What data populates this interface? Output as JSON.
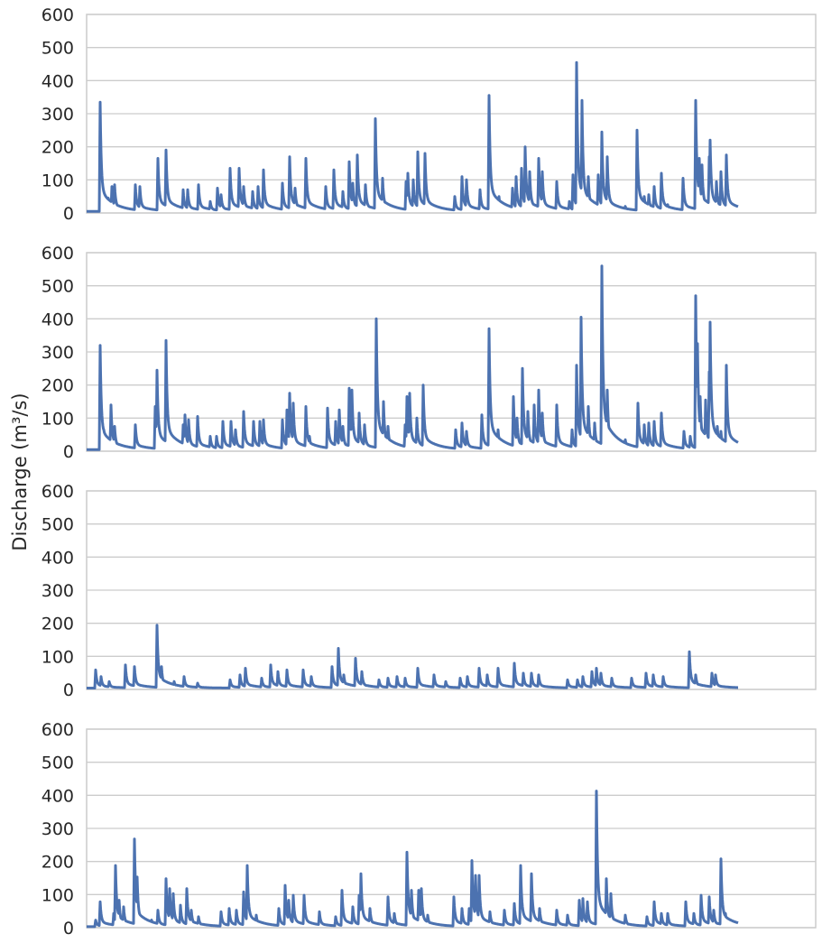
{
  "chart_data": [
    {
      "type": "line",
      "ylabel": "Discharge (m³/s)",
      "ylim": [
        0,
        600
      ],
      "yticks": [
        "0",
        "100",
        "200",
        "300",
        "400",
        "500",
        "600"
      ],
      "xlim": [
        0,
        808
      ],
      "x_series_end": 722,
      "xlabel": "",
      "grid": true,
      "color": "#4c72b0",
      "base_flow": 5,
      "peaks": [
        [
          15,
          330
        ],
        [
          24,
          40
        ],
        [
          28,
          75
        ],
        [
          31,
          80
        ],
        [
          54,
          80
        ],
        [
          59,
          75
        ],
        [
          79,
          160
        ],
        [
          88,
          185
        ],
        [
          107,
          65
        ],
        [
          112,
          65
        ],
        [
          124,
          80
        ],
        [
          137,
          30
        ],
        [
          145,
          70
        ],
        [
          149,
          50
        ],
        [
          159,
          130
        ],
        [
          169,
          130
        ],
        [
          174,
          75
        ],
        [
          184,
          60
        ],
        [
          190,
          75
        ],
        [
          196,
          125
        ],
        [
          217,
          85
        ],
        [
          225,
          165
        ],
        [
          231,
          70
        ],
        [
          243,
          160
        ],
        [
          265,
          75
        ],
        [
          274,
          125
        ],
        [
          284,
          60
        ],
        [
          291,
          150
        ],
        [
          295,
          85
        ],
        [
          300,
          170
        ],
        [
          309,
          80
        ],
        [
          320,
          280
        ],
        [
          328,
          100
        ],
        [
          354,
          90
        ],
        [
          356,
          115
        ],
        [
          362,
          95
        ],
        [
          367,
          180
        ],
        [
          375,
          175
        ],
        [
          408,
          45
        ],
        [
          416,
          105
        ],
        [
          421,
          95
        ],
        [
          436,
          65
        ],
        [
          446,
          350
        ],
        [
          457,
          45
        ],
        [
          472,
          70
        ],
        [
          476,
          105
        ],
        [
          482,
          130
        ],
        [
          486,
          195
        ],
        [
          491,
          120
        ],
        [
          501,
          160
        ],
        [
          505,
          120
        ],
        [
          521,
          90
        ],
        [
          535,
          30
        ],
        [
          539,
          110
        ],
        [
          543,
          450
        ],
        [
          549,
          335
        ],
        [
          556,
          105
        ],
        [
          567,
          110
        ],
        [
          571,
          240
        ],
        [
          577,
          165
        ],
        [
          597,
          15
        ],
        [
          610,
          245
        ],
        [
          618,
          45
        ],
        [
          623,
          50
        ],
        [
          629,
          75
        ],
        [
          637,
          115
        ],
        [
          644,
          20
        ],
        [
          661,
          100
        ],
        [
          675,
          335
        ],
        [
          679,
          160
        ],
        [
          682,
          140
        ],
        [
          690,
          165
        ],
        [
          691,
          215
        ],
        [
          698,
          90
        ],
        [
          703,
          120
        ],
        [
          709,
          170
        ]
      ]
    },
    {
      "type": "line",
      "ylim": [
        0,
        600
      ],
      "yticks": [
        "0",
        "100",
        "200",
        "300",
        "400",
        "500",
        "600"
      ],
      "xlim": [
        0,
        808
      ],
      "x_series_end": 722,
      "grid": true,
      "color": "#4c72b0",
      "base_flow": 5,
      "peaks": [
        [
          15,
          315
        ],
        [
          19,
          60
        ],
        [
          27,
          135
        ],
        [
          31,
          70
        ],
        [
          54,
          75
        ],
        [
          76,
          130
        ],
        [
          78,
          240
        ],
        [
          88,
          330
        ],
        [
          92,
          60
        ],
        [
          107,
          75
        ],
        [
          109,
          105
        ],
        [
          113,
          90
        ],
        [
          123,
          100
        ],
        [
          137,
          40
        ],
        [
          144,
          40
        ],
        [
          151,
          85
        ],
        [
          160,
          85
        ],
        [
          165,
          60
        ],
        [
          174,
          115
        ],
        [
          185,
          85
        ],
        [
          192,
          85
        ],
        [
          196,
          90
        ],
        [
          217,
          90
        ],
        [
          222,
          120
        ],
        [
          225,
          170
        ],
        [
          229,
          140
        ],
        [
          243,
          130
        ],
        [
          247,
          40
        ],
        [
          267,
          125
        ],
        [
          276,
          85
        ],
        [
          280,
          120
        ],
        [
          284,
          70
        ],
        [
          291,
          185
        ],
        [
          294,
          180
        ],
        [
          302,
          110
        ],
        [
          308,
          75
        ],
        [
          321,
          395
        ],
        [
          329,
          145
        ],
        [
          334,
          70
        ],
        [
          353,
          75
        ],
        [
          355,
          160
        ],
        [
          358,
          170
        ],
        [
          366,
          95
        ],
        [
          373,
          195
        ],
        [
          409,
          60
        ],
        [
          416,
          80
        ],
        [
          421,
          55
        ],
        [
          438,
          105
        ],
        [
          446,
          365
        ],
        [
          456,
          60
        ],
        [
          473,
          160
        ],
        [
          477,
          95
        ],
        [
          483,
          245
        ],
        [
          489,
          115
        ],
        [
          496,
          135
        ],
        [
          501,
          180
        ],
        [
          505,
          110
        ],
        [
          521,
          135
        ],
        [
          538,
          60
        ],
        [
          543,
          255
        ],
        [
          548,
          400
        ],
        [
          556,
          130
        ],
        [
          563,
          80
        ],
        [
          571,
          555
        ],
        [
          577,
          180
        ],
        [
          597,
          30
        ],
        [
          611,
          140
        ],
        [
          618,
          75
        ],
        [
          623,
          80
        ],
        [
          629,
          85
        ],
        [
          637,
          110
        ],
        [
          662,
          55
        ],
        [
          669,
          40
        ],
        [
          675,
          465
        ],
        [
          677,
          320
        ],
        [
          680,
          160
        ],
        [
          686,
          150
        ],
        [
          690,
          235
        ],
        [
          691,
          385
        ],
        [
          699,
          70
        ],
        [
          703,
          55
        ],
        [
          709,
          255
        ]
      ]
    },
    {
      "type": "line",
      "ylim": [
        0,
        600
      ],
      "yticks": [
        "0",
        "100",
        "200",
        "300",
        "400",
        "500",
        "600"
      ],
      "xlim": [
        0,
        808
      ],
      "x_series_end": 722,
      "grid": true,
      "color": "#4c72b0",
      "base_flow": 4,
      "peaks": [
        [
          10,
          55
        ],
        [
          16,
          35
        ],
        [
          25,
          20
        ],
        [
          43,
          70
        ],
        [
          53,
          65
        ],
        [
          78,
          190
        ],
        [
          83,
          65
        ],
        [
          97,
          20
        ],
        [
          108,
          35
        ],
        [
          123,
          15
        ],
        [
          159,
          25
        ],
        [
          170,
          40
        ],
        [
          176,
          60
        ],
        [
          194,
          30
        ],
        [
          204,
          70
        ],
        [
          212,
          50
        ],
        [
          222,
          55
        ],
        [
          240,
          55
        ],
        [
          249,
          35
        ],
        [
          272,
          65
        ],
        [
          279,
          120
        ],
        [
          285,
          40
        ],
        [
          298,
          90
        ],
        [
          305,
          50
        ],
        [
          324,
          25
        ],
        [
          334,
          30
        ],
        [
          344,
          35
        ],
        [
          353,
          30
        ],
        [
          367,
          60
        ],
        [
          385,
          40
        ],
        [
          398,
          20
        ],
        [
          414,
          30
        ],
        [
          422,
          35
        ],
        [
          435,
          60
        ],
        [
          444,
          40
        ],
        [
          456,
          60
        ],
        [
          474,
          75
        ],
        [
          484,
          45
        ],
        [
          493,
          45
        ],
        [
          501,
          40
        ],
        [
          533,
          25
        ],
        [
          544,
          25
        ],
        [
          550,
          35
        ],
        [
          560,
          50
        ],
        [
          565,
          60
        ],
        [
          570,
          45
        ],
        [
          582,
          30
        ],
        [
          604,
          30
        ],
        [
          620,
          45
        ],
        [
          628,
          40
        ],
        [
          639,
          35
        ],
        [
          668,
          110
        ],
        [
          675,
          40
        ],
        [
          693,
          45
        ],
        [
          697,
          40
        ]
      ]
    },
    {
      "type": "line",
      "ylim": [
        0,
        600
      ],
      "yticks": [
        "0",
        "100",
        "200",
        "300",
        "400",
        "500",
        "600"
      ],
      "xlim": [
        0,
        808
      ],
      "x_series_end": 722,
      "grid": true,
      "color": "#4c72b0",
      "base_flow": 3,
      "peaks": [
        [
          10,
          20
        ],
        [
          15,
          75
        ],
        [
          30,
          40
        ],
        [
          32,
          185
        ],
        [
          36,
          80
        ],
        [
          41,
          60
        ],
        [
          53,
          265
        ],
        [
          56,
          150
        ],
        [
          72,
          20
        ],
        [
          79,
          50
        ],
        [
          88,
          145
        ],
        [
          92,
          115
        ],
        [
          96,
          100
        ],
        [
          104,
          65
        ],
        [
          111,
          115
        ],
        [
          116,
          50
        ],
        [
          124,
          30
        ],
        [
          149,
          45
        ],
        [
          158,
          55
        ],
        [
          166,
          50
        ],
        [
          174,
          105
        ],
        [
          178,
          185
        ],
        [
          188,
          35
        ],
        [
          213,
          55
        ],
        [
          220,
          125
        ],
        [
          224,
          80
        ],
        [
          229,
          95
        ],
        [
          241,
          95
        ],
        [
          258,
          45
        ],
        [
          276,
          30
        ],
        [
          283,
          110
        ],
        [
          295,
          60
        ],
        [
          302,
          95
        ],
        [
          304,
          160
        ],
        [
          314,
          55
        ],
        [
          334,
          90
        ],
        [
          341,
          40
        ],
        [
          355,
          225
        ],
        [
          360,
          110
        ],
        [
          368,
          110
        ],
        [
          371,
          115
        ],
        [
          378,
          35
        ],
        [
          407,
          90
        ],
        [
          416,
          55
        ],
        [
          424,
          55
        ],
        [
          427,
          200
        ],
        [
          431,
          155
        ],
        [
          435,
          155
        ],
        [
          447,
          45
        ],
        [
          463,
          50
        ],
        [
          474,
          70
        ],
        [
          481,
          185
        ],
        [
          493,
          160
        ],
        [
          502,
          55
        ],
        [
          521,
          50
        ],
        [
          533,
          35
        ],
        [
          546,
          80
        ],
        [
          550,
          85
        ],
        [
          555,
          75
        ],
        [
          565,
          410
        ],
        [
          576,
          145
        ],
        [
          581,
          100
        ],
        [
          597,
          35
        ],
        [
          621,
          30
        ],
        [
          629,
          75
        ],
        [
          637,
          40
        ],
        [
          644,
          40
        ],
        [
          664,
          75
        ],
        [
          673,
          40
        ],
        [
          681,
          95
        ],
        [
          690,
          90
        ],
        [
          695,
          50
        ],
        [
          703,
          205
        ],
        [
          708,
          40
        ]
      ]
    }
  ]
}
